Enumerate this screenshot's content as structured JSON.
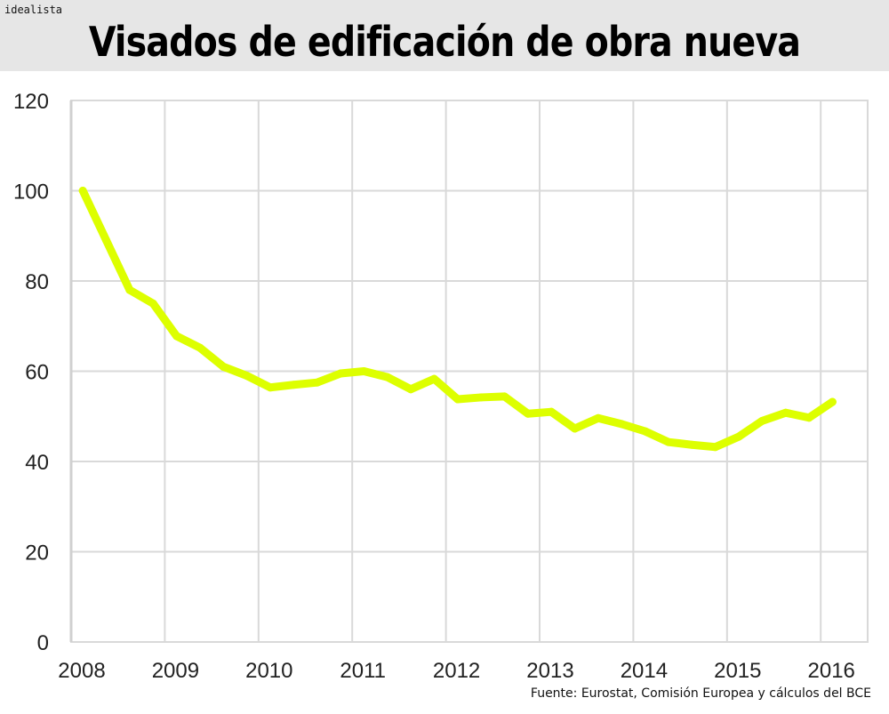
{
  "brand": "idealista",
  "title": "Visados de edificación de obra nueva",
  "source": "Fuente: Eurostat, Comisión Europea y cálculos del BCE",
  "colors": {
    "line": "#DDFF00",
    "grid": "#d9d9d9",
    "header_bg": "#e6e6e6"
  },
  "chart_data": {
    "type": "line",
    "title": "Visados de edificación de obra nueva",
    "xlabel": "",
    "ylabel": "",
    "xlim": [
      2008,
      2016.5
    ],
    "ylim": [
      0,
      120
    ],
    "grid": true,
    "x_ticks": [
      "2008",
      "2009",
      "2010",
      "2011",
      "2012",
      "2013",
      "2014",
      "2015",
      "2016"
    ],
    "y_ticks": [
      "0",
      "20",
      "40",
      "60",
      "80",
      "100",
      "120"
    ],
    "x": [
      2008.125,
      2008.375,
      2008.625,
      2008.875,
      2009.125,
      2009.375,
      2009.625,
      2009.875,
      2010.125,
      2010.375,
      2010.625,
      2010.875,
      2011.125,
      2011.375,
      2011.625,
      2011.875,
      2012.125,
      2012.375,
      2012.625,
      2012.875,
      2013.125,
      2013.375,
      2013.625,
      2013.875,
      2014.125,
      2014.375,
      2014.625,
      2014.875,
      2015.125,
      2015.375,
      2015.625,
      2015.875,
      2016.125
    ],
    "series": [
      {
        "values": [
          100,
          89,
          78,
          75,
          67.8,
          65.2,
          61,
          59,
          56.4,
          57,
          57.5,
          59.5,
          60,
          58.7,
          56,
          58.3,
          53.8,
          54.2,
          54.4,
          50.6,
          51,
          47.3,
          49.6,
          48.3,
          46.7,
          44.3,
          43.7,
          43.2,
          45.5,
          49,
          50.8,
          49.7,
          53.2
        ]
      }
    ]
  }
}
